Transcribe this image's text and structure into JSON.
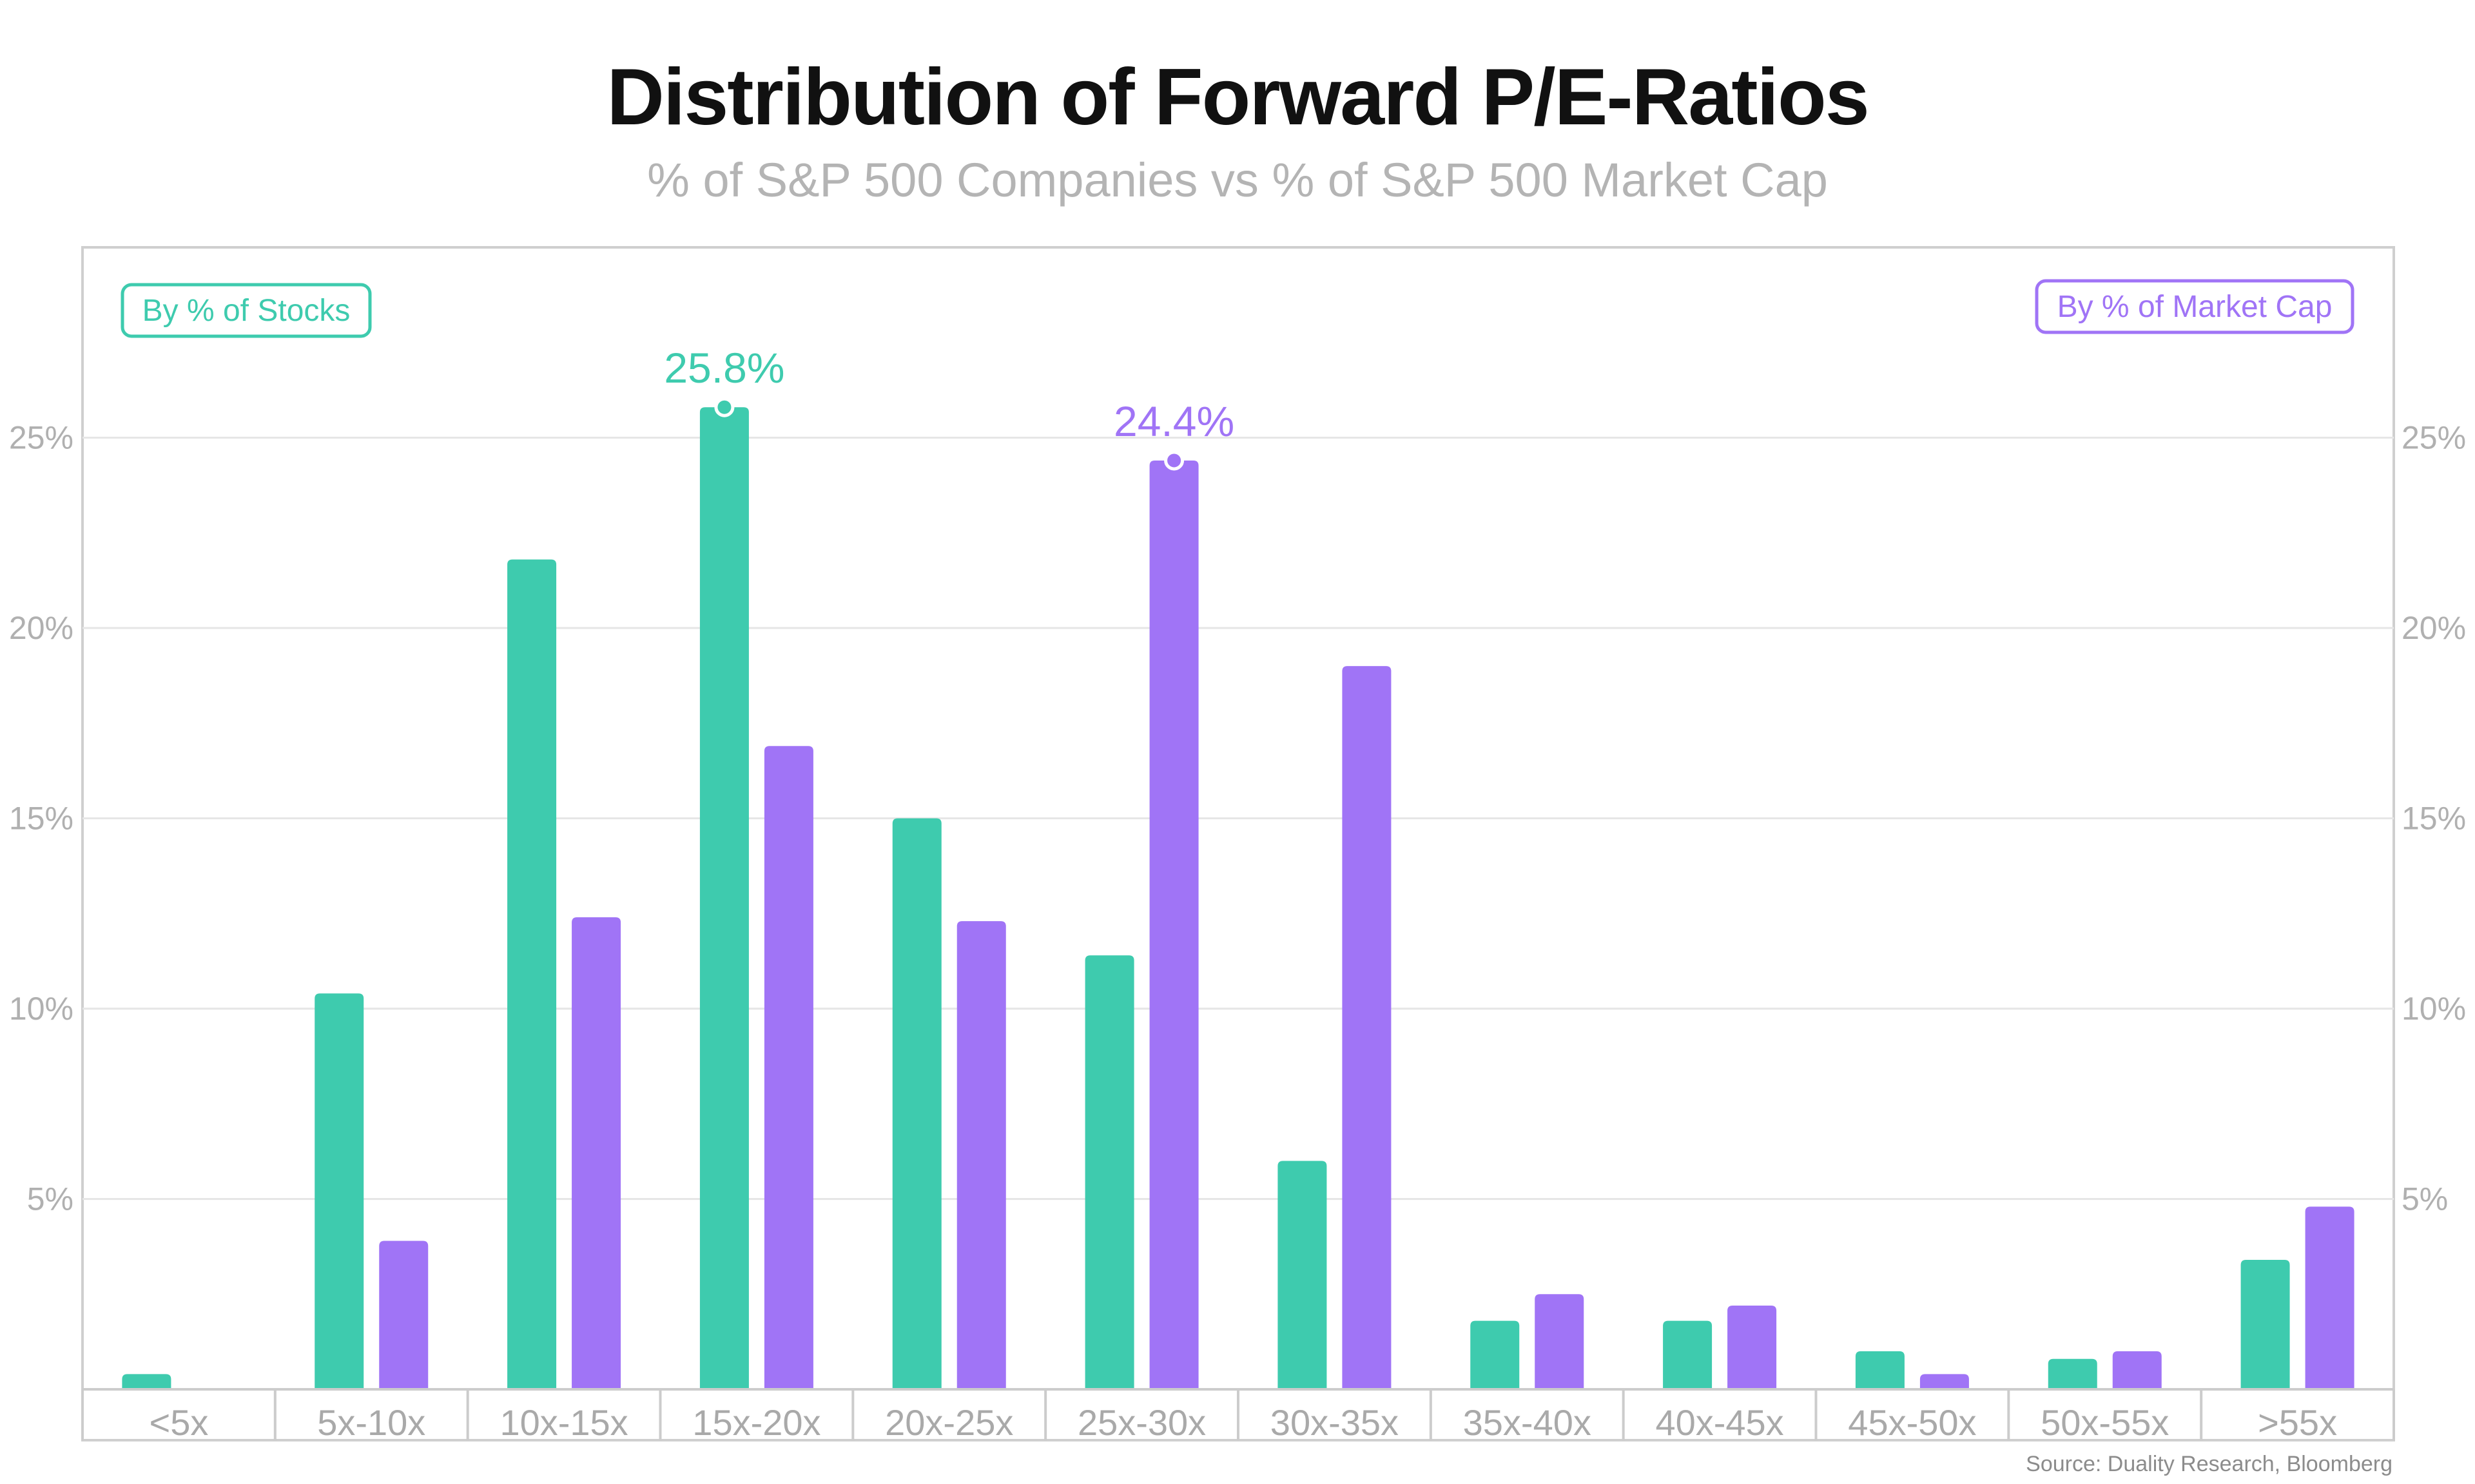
{
  "title": "Distribution of Forward P/E-Ratios",
  "subtitle": "% of S&P 500 Companies vs % of S&P 500 Market Cap",
  "source": "Source: Duality Research, Bloomberg",
  "colors": {
    "stocks": "#3ecbae",
    "market_cap": "#a074f6",
    "grid": "#e6e6e6",
    "axis": "#cccccc",
    "frame": "#cfcfcf"
  },
  "chart_data": {
    "type": "bar",
    "title": "Distribution of Forward P/E-Ratios",
    "subtitle": "% of S&P 500 Companies vs % of S&P 500 Market Cap",
    "categories": [
      "<5x",
      "5x-10x",
      "10x-15x",
      "15x-20x",
      "20x-25x",
      "25x-30x",
      "30x-35x",
      "35x-40x",
      "40x-45x",
      "45x-50x",
      "50x-55x",
      ">55x"
    ],
    "series": [
      {
        "name": "By % of Stocks",
        "color": "#3ecbae",
        "values": [
          0.4,
          10.4,
          21.8,
          25.8,
          15.0,
          11.4,
          6.0,
          1.8,
          1.8,
          1.0,
          0.8,
          3.4
        ]
      },
      {
        "name": "By % of Market Cap",
        "color": "#a074f6",
        "values": [
          0.0,
          3.9,
          12.4,
          16.9,
          12.3,
          24.4,
          19.0,
          2.5,
          2.2,
          0.4,
          1.0,
          4.8
        ]
      }
    ],
    "y_ticks": [
      "5%",
      "10%",
      "15%",
      "20%",
      "25%"
    ],
    "y_tick_values": [
      5,
      10,
      15,
      20,
      25
    ],
    "ylim": [
      0,
      29
    ],
    "grid": true,
    "legend": [
      "top-left",
      "top-right"
    ],
    "annotations": [
      {
        "series": 0,
        "category": "15x-20x",
        "label": "25.8%"
      },
      {
        "series": 1,
        "category": "25x-30x",
        "label": "24.4%"
      }
    ]
  }
}
